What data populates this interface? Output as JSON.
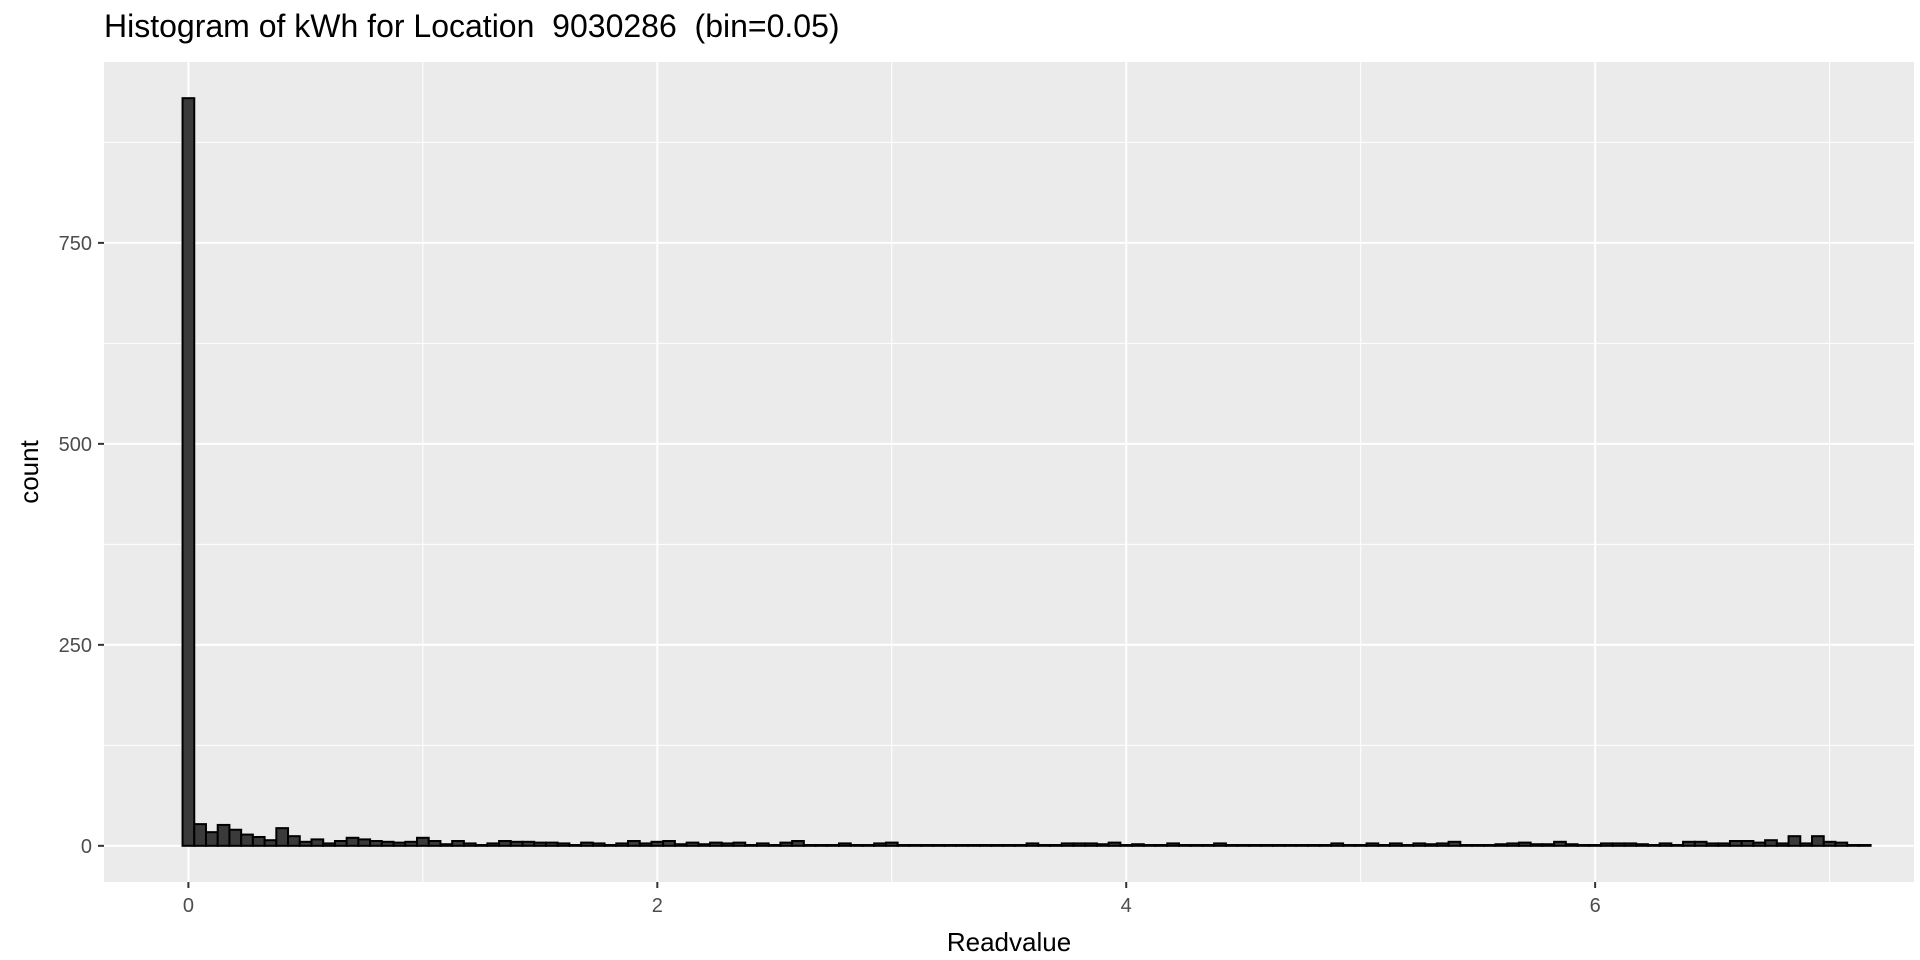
{
  "chart_data": {
    "type": "bar",
    "title": "Histogram of kWh for Location  9030286  (bin=0.05)",
    "xlabel": "Readvalue",
    "ylabel": "count",
    "bin_width": 0.05,
    "xlim": [
      -0.36,
      7.36
    ],
    "ylim": [
      -45,
      975
    ],
    "x_ticks": [
      0,
      2,
      4,
      6
    ],
    "y_ticks": [
      0,
      250,
      500,
      750
    ],
    "x_tick_labels": [
      "0",
      "2",
      "4",
      "6"
    ],
    "y_tick_labels": [
      "0",
      "250",
      "500",
      "750"
    ],
    "bar_fill": "#3a3a3a",
    "bar_stroke": "#000000",
    "panel_background": "#ebebeb",
    "grid_color": "#ffffff",
    "bins_start": 0,
    "values": [
      930,
      27,
      17,
      26,
      20,
      14,
      11,
      7,
      22,
      12,
      5,
      8,
      3,
      6,
      10,
      8,
      6,
      5,
      4,
      5,
      10,
      6,
      2,
      6,
      3,
      1,
      3,
      6,
      5,
      5,
      4,
      4,
      3,
      1,
      4,
      3,
      1,
      3,
      6,
      3,
      5,
      6,
      2,
      4,
      2,
      4,
      3,
      4,
      1,
      3,
      1,
      4,
      6,
      1,
      1,
      1,
      3,
      1,
      1,
      3,
      4,
      1,
      1,
      1,
      1,
      1,
      1,
      1,
      1,
      1,
      1,
      1,
      3,
      1,
      1,
      3,
      3,
      3,
      2,
      4,
      1,
      2,
      1,
      1,
      3,
      1,
      1,
      1,
      3,
      1,
      1,
      1,
      1,
      1,
      1,
      1,
      1,
      1,
      3,
      1,
      1,
      3,
      1,
      3,
      1,
      3,
      2,
      3,
      5,
      1,
      1,
      1,
      2,
      3,
      4,
      2,
      2,
      5,
      2,
      1,
      1,
      3,
      3,
      3,
      2,
      1,
      3,
      1,
      5,
      5,
      3,
      3,
      6,
      6,
      4,
      7,
      3,
      12,
      3,
      12,
      5,
      4,
      1,
      1
    ]
  }
}
